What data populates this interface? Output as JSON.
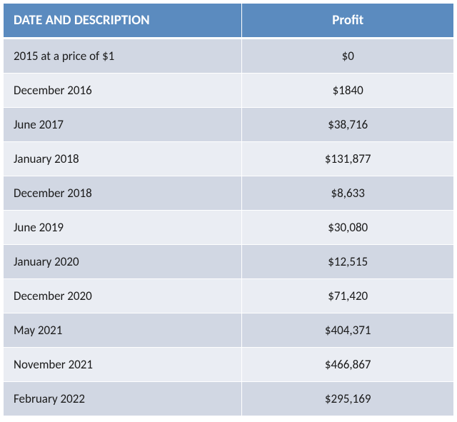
{
  "table": {
    "columns": [
      {
        "label": "DATE AND DESCRIPTION",
        "align": "left",
        "width": "53%"
      },
      {
        "label": "Profit",
        "align": "center",
        "width": "47%"
      }
    ],
    "header_bg": "#5b8bbf",
    "header_color": "#ffffff",
    "header_fontsize": 19,
    "row_odd_bg": "#d1d7e3",
    "row_even_bg": "#eaedf3",
    "border_color": "#ffffff",
    "cell_fontsize": 17,
    "cell_color": "#1a1a1a",
    "rows": [
      {
        "date": "2015 at a price of $1",
        "profit": "$0"
      },
      {
        "date": "December 2016",
        "profit": "$1840"
      },
      {
        "date": "June 2017",
        "profit": "$38,716"
      },
      {
        "date": "January 2018",
        "profit": "$131,877"
      },
      {
        "date": "December 2018",
        "profit": "$8,633"
      },
      {
        "date": "June 2019",
        "profit": "$30,080"
      },
      {
        "date": "January 2020",
        "profit": "$12,515"
      },
      {
        "date": "December 2020",
        "profit": "$71,420"
      },
      {
        "date": "May 2021",
        "profit": "$404,371"
      },
      {
        "date": "November 2021",
        "profit": "$466,867"
      },
      {
        "date": "February 2022",
        "profit": "$295,169"
      }
    ]
  }
}
